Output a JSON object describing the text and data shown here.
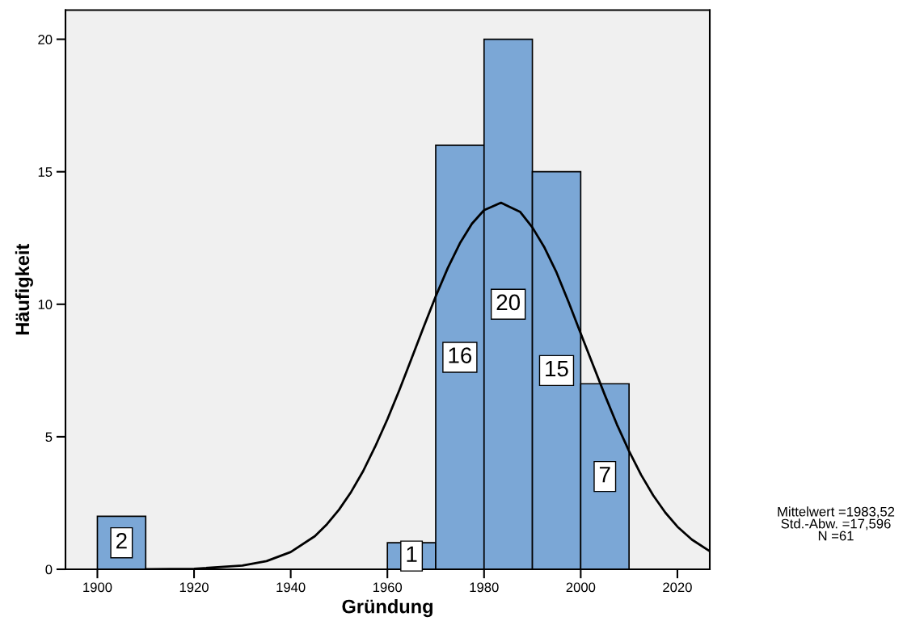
{
  "chart_data": {
    "type": "histogram",
    "xlabel": "Gründung",
    "ylabel": "Häufigkeit",
    "bins": [
      1900,
      1910,
      1920,
      1930,
      1940,
      1950,
      1960,
      1970,
      1980,
      1990,
      2000,
      2010
    ],
    "values": [
      2,
      0,
      0,
      0,
      0,
      0,
      1,
      16,
      20,
      15,
      7
    ],
    "value_labels": [
      "2",
      null,
      null,
      null,
      null,
      null,
      "1",
      "16",
      "20",
      "15",
      "7"
    ],
    "color": "#7ba7d6",
    "series": [
      {
        "type": "line",
        "color": "#000000",
        "x": [
          1910,
          1920,
          1930,
          1935,
          1940,
          1945,
          1947.5,
          1950,
          1952.5,
          1955,
          1957.5,
          1960,
          1962.5,
          1965,
          1967.5,
          1970,
          1972.5,
          1975,
          1977.5,
          1980,
          1983.5,
          1987.5,
          1990,
          1992.5,
          1995,
          1997.5,
          2000,
          2002.5,
          2005,
          2007.5,
          2010,
          2012.5,
          2015,
          2017.5,
          2020,
          2023,
          2026.7
        ],
        "values": [
          0,
          0.02,
          0.14,
          0.31,
          0.65,
          1.25,
          1.7,
          2.25,
          2.92,
          3.71,
          4.64,
          5.66,
          6.77,
          7.95,
          9.14,
          10.3,
          11.37,
          12.3,
          13.04,
          13.55,
          13.83,
          13.48,
          12.9,
          12.14,
          11.2,
          10.08,
          8.9,
          7.73,
          6.57,
          5.46,
          4.46,
          3.56,
          2.79,
          2.14,
          1.61,
          1.12,
          0.68
        ]
      }
    ],
    "xlim": [
      1893.4,
      2026.7
    ],
    "ylim": [
      0,
      21.1
    ],
    "xticks": [
      1900,
      1920,
      1940,
      1960,
      1980,
      2000,
      2020
    ],
    "yticks": [
      0,
      5,
      10,
      15,
      20
    ],
    "annotations": [
      "Mittelwert =1983,52\nStd.-Abw. =17,596\nN =61"
    ]
  }
}
